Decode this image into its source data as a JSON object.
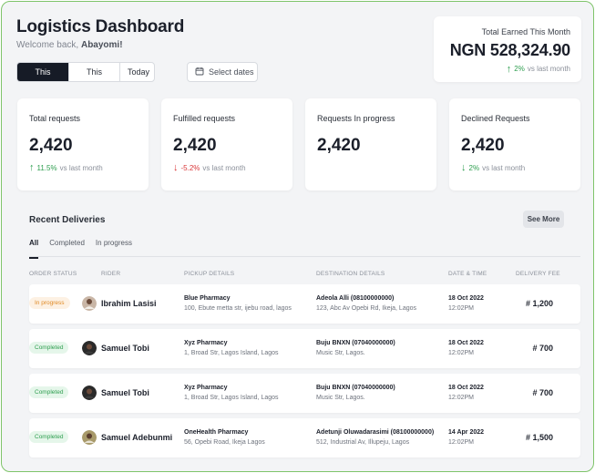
{
  "header": {
    "title": "Logistics Dashboard",
    "welcome_prefix": "Welcome back,",
    "user_name": "Abayomi!"
  },
  "period_tabs": [
    "This Month",
    "This Week",
    "Today"
  ],
  "date_picker": {
    "label": "Select dates",
    "icon": "calendar-icon"
  },
  "earned": {
    "label": "Total Earned This Month",
    "amount": "NGN 528,324.90",
    "change": "2%",
    "change_note": "vs last month",
    "direction": "up"
  },
  "stats": [
    {
      "label": "Total requests",
      "value": "2,420",
      "change": "11.5%",
      "note": "vs last month",
      "direction": "up"
    },
    {
      "label": "Fulfilled requests",
      "value": "2,420",
      "change": "-5.2%",
      "note": "vs last month",
      "direction": "down"
    },
    {
      "label": "Requests In progress",
      "value": "2,420",
      "change": "",
      "note": "",
      "direction": "none"
    },
    {
      "label": "Declined Requests",
      "value": "2,420",
      "change": "2%",
      "note": "vs last month",
      "direction": "down"
    }
  ],
  "deliveries": {
    "title": "Recent Deliveries",
    "see_more": "See More",
    "tabs": [
      "All",
      "Completed",
      "In progress"
    ],
    "columns": [
      "ORDER STATUS",
      "RIDER",
      "PICKUP DETAILS",
      "DESTINATION DETAILS",
      "DATE & TIME",
      "DELIVERY FEE"
    ],
    "rows": [
      {
        "status": "In progress",
        "status_kind": "progress",
        "rider": "Ibrahim Lasisi",
        "pickup_name": "Blue Pharmacy",
        "pickup_addr": "100, Ebute metta str, ijebu road, lagos",
        "dest_name": "Adeola Alli (08100000000)",
        "dest_addr": "123, Abc Av Opebi Rd, Ikeja,  Lagos",
        "date": "18 Oct 2022",
        "time": "12:02PM",
        "fee": "# 1,200"
      },
      {
        "status": "Completed",
        "status_kind": "completed",
        "rider": "Samuel Tobi",
        "pickup_name": "Xyz Pharmacy",
        "pickup_addr": "1, Broad Str, Lagos Island, Lagos",
        "dest_name": "Buju BNXN (07040000000)",
        "dest_addr": "Music Str, Lagos.",
        "date": "18 Oct 2022",
        "time": "12:02PM",
        "fee": "# 700"
      },
      {
        "status": "Completed",
        "status_kind": "completed",
        "rider": "Samuel Tobi",
        "pickup_name": "Xyz Pharmacy",
        "pickup_addr": "1, Broad Str, Lagos Island, Lagos",
        "dest_name": "Buju BNXN (07040000000)",
        "dest_addr": "Music Str, Lagos.",
        "date": "18 Oct 2022",
        "time": "12:02PM",
        "fee": "# 700"
      },
      {
        "status": "Completed",
        "status_kind": "completed",
        "rider": "Samuel Adebunmi",
        "pickup_name": "OneHealth Pharmacy",
        "pickup_addr": "56, Opebi Road, Ikeja Lagos",
        "dest_name": "Adetunji Oluwadarasimi (08100000000)",
        "dest_addr": "512, Industrial Av, Illupeju, Lagos",
        "date": "14 Apr 2022",
        "time": "12:02PM",
        "fee": "# 1,500"
      }
    ]
  },
  "colors": {
    "accent_dark": "#161b26",
    "positive": "#2e9e4f",
    "negative": "#d9383a",
    "progress": "#e08a25",
    "frame": "#7fc46a"
  }
}
